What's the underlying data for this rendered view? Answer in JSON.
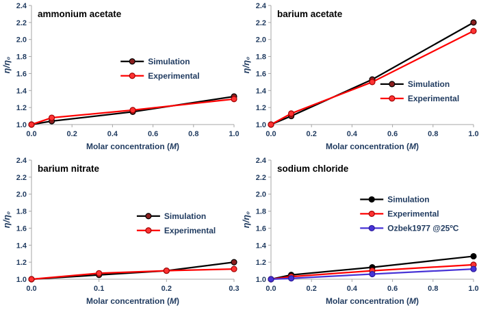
{
  "figure_background": "#ffffff",
  "axis_color": "#a6a6a6",
  "text_color": "#1f3a5f",
  "chart_data": [
    {
      "type": "line",
      "title": "ammonium acetate",
      "xlabel": "Molar concentration (M)",
      "ylabel": "η/η₀",
      "xlim": [
        0.0,
        1.0
      ],
      "xticks": [
        0.0,
        0.2,
        0.4,
        0.6,
        0.8,
        1.0
      ],
      "ylim": [
        1.0,
        2.4
      ],
      "yticks": [
        1.0,
        1.2,
        1.4,
        1.6,
        1.8,
        2.0,
        2.2,
        2.4
      ],
      "grid": false,
      "legend_pos": {
        "x": 0.44,
        "y": 0.47
      },
      "series": [
        {
          "name": "Simulation",
          "color": "#000000",
          "marker": {
            "fill": "#8b1f1f",
            "stroke": "#000000"
          },
          "x": [
            0.0,
            0.1,
            0.5,
            1.0
          ],
          "y": [
            1.0,
            1.04,
            1.15,
            1.33
          ]
        },
        {
          "name": "Experimental",
          "color": "#ff0000",
          "marker": {
            "fill": "#ff3333",
            "stroke": "#a00000"
          },
          "x": [
            0.0,
            0.1,
            0.5,
            1.0
          ],
          "y": [
            1.0,
            1.08,
            1.17,
            1.3
          ]
        }
      ]
    },
    {
      "type": "line",
      "title": "barium acetate",
      "xlabel": "Molar concentration (M)",
      "ylabel": "η/η₀",
      "xlim": [
        0.0,
        1.0
      ],
      "xticks": [
        0.0,
        0.2,
        0.4,
        0.6,
        0.8,
        1.0
      ],
      "ylim": [
        1.0,
        2.4
      ],
      "yticks": [
        1.0,
        1.2,
        1.4,
        1.6,
        1.8,
        2.0,
        2.2,
        2.4
      ],
      "grid": false,
      "legend_pos": {
        "x": 0.54,
        "y": 0.66
      },
      "series": [
        {
          "name": "Simulation",
          "color": "#000000",
          "marker": {
            "fill": "#8b1f1f",
            "stroke": "#000000"
          },
          "x": [
            0.0,
            0.1,
            0.5,
            1.0
          ],
          "y": [
            1.0,
            1.1,
            1.53,
            2.2
          ]
        },
        {
          "name": "Experimental",
          "color": "#ff0000",
          "marker": {
            "fill": "#ff3333",
            "stroke": "#a00000"
          },
          "x": [
            0.0,
            0.1,
            0.5,
            1.0
          ],
          "y": [
            1.0,
            1.13,
            1.5,
            2.1
          ]
        }
      ]
    },
    {
      "type": "line",
      "title": "barium nitrate",
      "xlabel": "Molar concentration (M)",
      "ylabel": "η/η₀",
      "xlim": [
        0.0,
        0.3
      ],
      "xticks": [
        0.0,
        0.1,
        0.2,
        0.3
      ],
      "ylim": [
        1.0,
        2.4
      ],
      "yticks": [
        1.0,
        1.2,
        1.4,
        1.6,
        1.8,
        2.0,
        2.2,
        2.4
      ],
      "grid": false,
      "legend_pos": {
        "x": 0.52,
        "y": 0.47
      },
      "series": [
        {
          "name": "Simulation",
          "color": "#000000",
          "marker": {
            "fill": "#8b1f1f",
            "stroke": "#000000"
          },
          "x": [
            0.0,
            0.1,
            0.2,
            0.3
          ],
          "y": [
            1.0,
            1.05,
            1.1,
            1.2
          ]
        },
        {
          "name": "Experimental",
          "color": "#ff0000",
          "marker": {
            "fill": "#ff3333",
            "stroke": "#a00000"
          },
          "x": [
            0.0,
            0.1,
            0.2,
            0.3
          ],
          "y": [
            1.0,
            1.07,
            1.1,
            1.12
          ]
        }
      ]
    },
    {
      "type": "line",
      "title": "sodium chloride",
      "xlabel": "Molar concentration (M)",
      "ylabel": "η/η₀",
      "xlim": [
        0.0,
        1.0
      ],
      "xticks": [
        0.0,
        0.2,
        0.4,
        0.6,
        0.8,
        1.0
      ],
      "ylim": [
        1.0,
        2.4
      ],
      "yticks": [
        1.0,
        1.2,
        1.4,
        1.6,
        1.8,
        2.0,
        2.2,
        2.4
      ],
      "grid": false,
      "legend_pos": {
        "x": 0.44,
        "y": 0.33
      },
      "series": [
        {
          "name": "Simulation",
          "color": "#000000",
          "marker": {
            "fill": "#000000",
            "stroke": "#000000"
          },
          "x": [
            0.0,
            0.1,
            0.5,
            1.0
          ],
          "y": [
            1.0,
            1.05,
            1.14,
            1.27
          ]
        },
        {
          "name": "Experimental",
          "color": "#ff0000",
          "marker": {
            "fill": "#ff3333",
            "stroke": "#a00000"
          },
          "x": [
            0.0,
            0.1,
            0.5,
            1.0
          ],
          "y": [
            1.0,
            1.03,
            1.1,
            1.17
          ]
        },
        {
          "name": "Ozbek1977 @25ºC",
          "color": "#4733d6",
          "marker": {
            "fill": "#4733d6",
            "stroke": "#2a1a99"
          },
          "x": [
            0.0,
            0.1,
            0.5,
            1.0
          ],
          "y": [
            1.0,
            1.01,
            1.06,
            1.12
          ]
        }
      ]
    }
  ]
}
